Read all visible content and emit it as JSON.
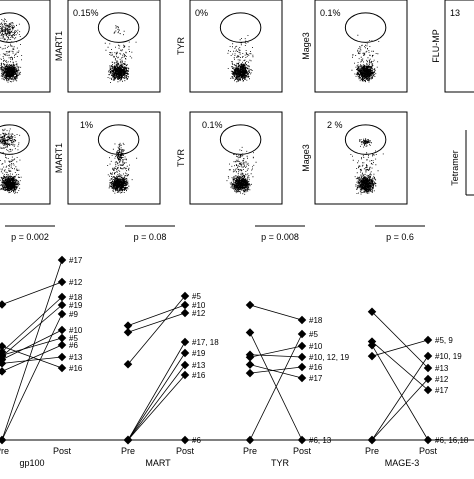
{
  "panels_row1": [
    {
      "axis": "MART1",
      "percent": "0.15%"
    },
    {
      "axis": "TYR",
      "percent": "0%"
    },
    {
      "axis": "Mage3",
      "percent": "0.1%"
    },
    {
      "axis": "FLU-MP",
      "percent": "13"
    }
  ],
  "panels_row2": [
    {
      "axis": "MART1",
      "percent": "1%"
    },
    {
      "axis": "TYR",
      "percent": "0.1%"
    },
    {
      "axis": "Mage3",
      "percent": "2 %"
    }
  ],
  "tetramer_label": "Tetramer",
  "groups": [
    {
      "name": "gp100",
      "p": "p = 0.002",
      "pre": "Pre",
      "post": "Post",
      "labels": [
        "#17",
        "#12",
        "#18",
        "#19",
        "#9",
        "#10",
        "#5",
        "#6",
        "#13",
        "#16"
      ]
    },
    {
      "name": "MART",
      "p": "p = 0.08",
      "pre": "Pre",
      "post": "Post",
      "labels": [
        "#5",
        "#10",
        "#12",
        "#17, 18",
        "#19",
        "#13",
        "#16",
        "#6"
      ]
    },
    {
      "name": "TYR",
      "p": "p = 0.008",
      "pre": "Pre",
      "post": "Post",
      "labels": [
        "#18",
        "#5",
        "#10",
        "#10, 12, 19",
        "#16",
        "#17",
        "#6, 13"
      ]
    },
    {
      "name": "MAGE-3",
      "p": "p = 0.6",
      "pre": "Pre",
      "post": "Post",
      "labels": [
        "#5, 9",
        "#10, 19",
        "#13",
        "#12",
        "#17",
        "#6, 16,18"
      ]
    }
  ]
}
